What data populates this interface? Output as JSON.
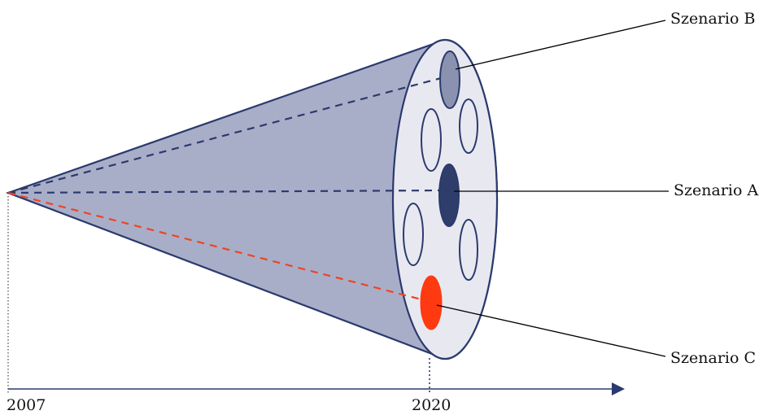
{
  "timeline": {
    "start_label": "2007",
    "end_label": "2020"
  },
  "scenarios": [
    {
      "key": "b",
      "label": "Szenario B",
      "color": "#8a92b0"
    },
    {
      "key": "a",
      "label": "Szenario A",
      "color": "#2f3d6b"
    },
    {
      "key": "c",
      "label": "Szenario C",
      "color": "#ff3a10"
    }
  ],
  "colors": {
    "cone_fill": "#a9aec8",
    "cone_stroke": "#2b3a6e",
    "ellipse_fill": "#e8e9f0",
    "dash_blue": "#2b3a6e",
    "dash_red": "#ee4422",
    "axis": "#2b3a6e",
    "leader": "#000000"
  }
}
